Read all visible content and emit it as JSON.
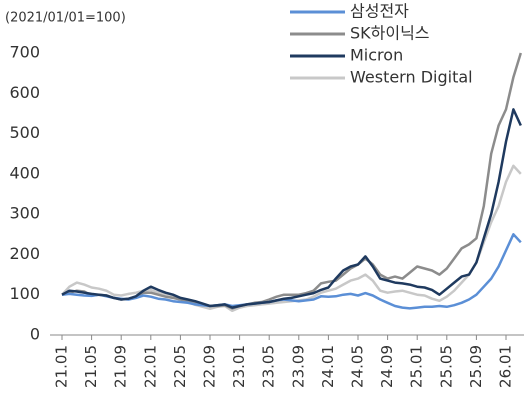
{
  "chart_data": {
    "type": "line",
    "subtitle": "(2021/01/01=100)",
    "categories": [
      "21.01",
      null,
      null,
      null,
      "21.05",
      null,
      null,
      null,
      "21.09",
      null,
      null,
      null,
      "22.01",
      null,
      null,
      null,
      "22.05",
      null,
      null,
      null,
      "22.09",
      null,
      null,
      null,
      "23.01",
      null,
      null,
      null,
      "23.05",
      null,
      null,
      null,
      "23.09",
      null,
      null,
      null,
      "24.01",
      null,
      null,
      null,
      "24.05",
      null,
      null,
      null,
      "24.09",
      null,
      null,
      null,
      "25.01",
      null,
      null,
      null,
      "25.05",
      null,
      null,
      null,
      "25.09",
      null,
      null,
      null,
      "26.01",
      null,
      null
    ],
    "series": [
      {
        "name": "Western Digital",
        "color": "#c8c8c8",
        "values": [
          100,
          120,
          130,
          125,
          118,
          115,
          110,
          100,
          98,
          102,
          105,
          110,
          112,
          105,
          100,
          95,
          90,
          82,
          75,
          70,
          65,
          70,
          72,
          60,
          68,
          72,
          74,
          76,
          78,
          80,
          82,
          84,
          86,
          88,
          95,
          105,
          110,
          115,
          125,
          135,
          140,
          150,
          135,
          110,
          105,
          108,
          110,
          105,
          100,
          98,
          90,
          85,
          95,
          110,
          130,
          150,
          180,
          230,
          280,
          320,
          380,
          420,
          400
        ]
      },
      {
        "name": "SK하이닉스",
        "color": "#8c8c8c",
        "values": [
          100,
          105,
          110,
          108,
          98,
          100,
          98,
          92,
          88,
          90,
          95,
          105,
          105,
          100,
          95,
          92,
          88,
          82,
          80,
          76,
          72,
          72,
          74,
          66,
          72,
          76,
          80,
          82,
          88,
          95,
          100,
          100,
          100,
          104,
          110,
          128,
          132,
          135,
          150,
          165,
          175,
          190,
          175,
          150,
          140,
          145,
          140,
          155,
          170,
          165,
          160,
          150,
          165,
          190,
          215,
          225,
          240,
          320,
          450,
          520,
          560,
          640,
          700
        ]
      },
      {
        "name": "삼성전자",
        "color": "#5b8fd6",
        "values": [
          100,
          102,
          100,
          98,
          97,
          100,
          96,
          92,
          90,
          88,
          92,
          98,
          95,
          90,
          88,
          84,
          82,
          80,
          76,
          74,
          72,
          74,
          76,
          72,
          74,
          76,
          78,
          80,
          82,
          86,
          88,
          86,
          84,
          86,
          88,
          96,
          95,
          96,
          100,
          102,
          98,
          104,
          98,
          88,
          80,
          72,
          68,
          66,
          68,
          70,
          70,
          72,
          70,
          74,
          80,
          88,
          100,
          120,
          140,
          170,
          210,
          250,
          230
        ]
      },
      {
        "name": "Micron",
        "color": "#1f3a5f",
        "values": [
          100,
          110,
          108,
          105,
          102,
          100,
          98,
          92,
          88,
          90,
          96,
          110,
          120,
          112,
          105,
          100,
          92,
          88,
          84,
          78,
          72,
          74,
          76,
          68,
          72,
          76,
          78,
          80,
          82,
          86,
          90,
          92,
          96,
          100,
          104,
          112,
          118,
          140,
          160,
          170,
          175,
          195,
          170,
          140,
          135,
          130,
          128,
          125,
          120,
          118,
          112,
          100,
          115,
          130,
          145,
          150,
          180,
          240,
          300,
          380,
          480,
          560,
          520
        ]
      }
    ],
    "legend_order": [
      "삼성전자",
      "SK하이닉스",
      "Micron",
      "Western Digital"
    ],
    "ylim": [
      0,
      700
    ],
    "yticks": [
      0,
      100,
      200,
      300,
      400,
      500,
      600,
      700
    ],
    "grid": false
  }
}
